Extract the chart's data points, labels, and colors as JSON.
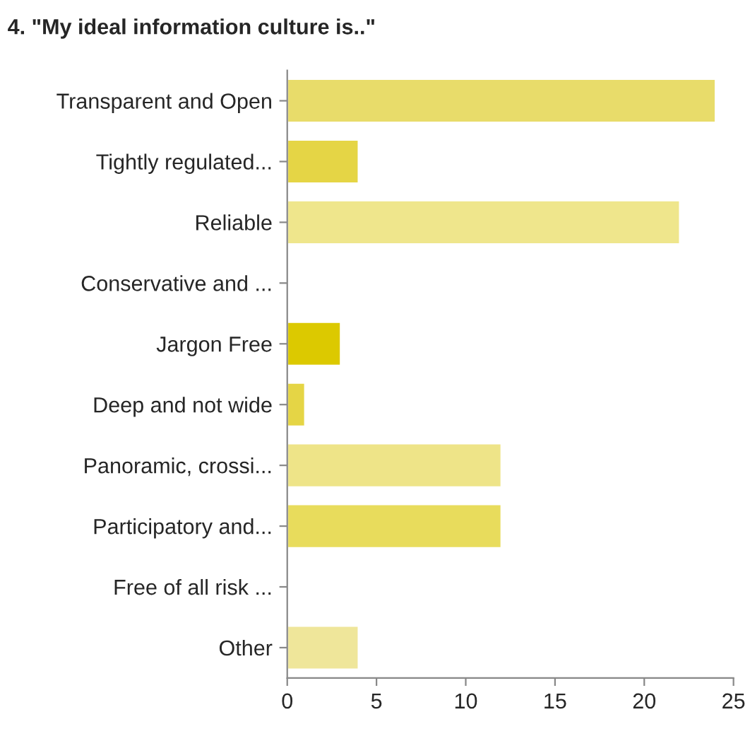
{
  "chart_data": {
    "type": "bar",
    "orientation": "horizontal",
    "title": "4. \"My ideal information culture is..\"",
    "categories": [
      "Transparent and Open",
      "Tightly regulated...",
      "Reliable",
      "Conservative and ...",
      "Jargon Free",
      "Deep and not wide",
      "Panoramic, crossi...",
      "Participatory and...",
      "Free of all risk ...",
      "Other"
    ],
    "values": [
      24,
      4,
      22,
      0,
      3,
      1,
      12,
      12,
      0,
      4
    ],
    "colors": [
      "#e8dc6a",
      "#e5d545",
      "#efe68c",
      null,
      "#dcc900",
      "#e5d545",
      "#eee488",
      "#e8dc5c",
      null,
      "#efe69a"
    ],
    "xlim": [
      0,
      25
    ],
    "xticks": [
      0,
      5,
      10,
      15,
      20,
      25
    ],
    "grid": false
  }
}
